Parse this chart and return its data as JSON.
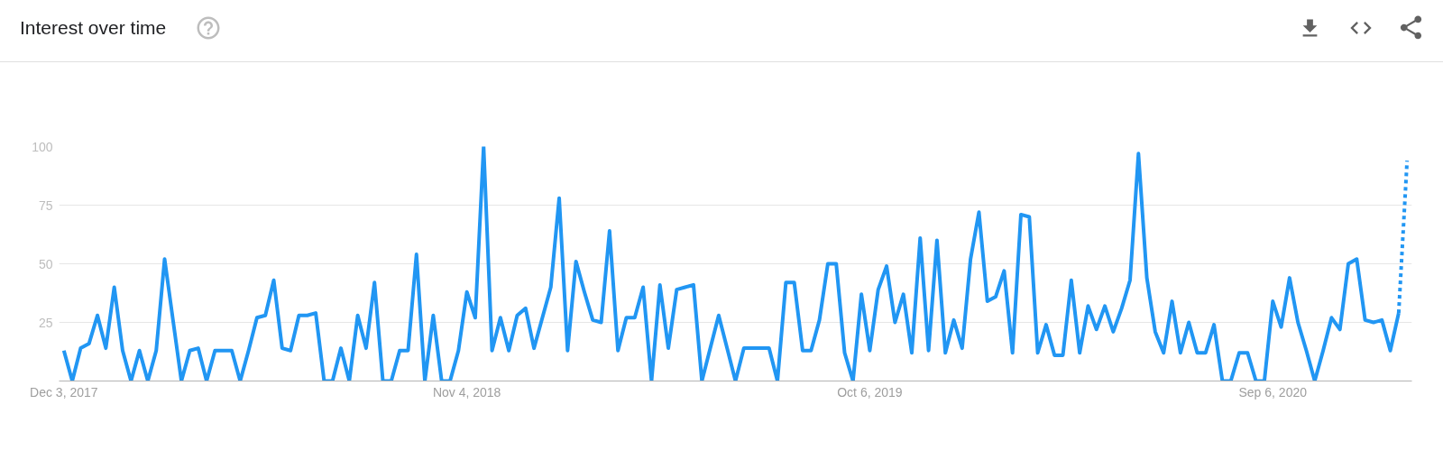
{
  "chart_data": {
    "type": "line",
    "title": "Interest over time",
    "x": [
      "2017-12-03",
      "2017-12-10",
      "2017-12-17",
      "2017-12-24",
      "2017-12-31",
      "2018-01-07",
      "2018-01-14",
      "2018-01-21",
      "2018-01-28",
      "2018-02-04",
      "2018-02-11",
      "2018-02-18",
      "2018-02-25",
      "2018-03-04",
      "2018-03-11",
      "2018-03-18",
      "2018-03-25",
      "2018-04-01",
      "2018-04-08",
      "2018-04-15",
      "2018-04-22",
      "2018-04-29",
      "2018-05-06",
      "2018-05-13",
      "2018-05-20",
      "2018-05-27",
      "2018-06-03",
      "2018-06-10",
      "2018-06-17",
      "2018-06-24",
      "2018-07-01",
      "2018-07-08",
      "2018-07-15",
      "2018-07-22",
      "2018-07-29",
      "2018-08-05",
      "2018-08-12",
      "2018-08-19",
      "2018-08-26",
      "2018-09-02",
      "2018-09-09",
      "2018-09-16",
      "2018-09-23",
      "2018-09-30",
      "2018-10-07",
      "2018-10-14",
      "2018-10-21",
      "2018-10-28",
      "2018-11-04",
      "2018-11-11",
      "2018-11-18",
      "2018-11-25",
      "2018-12-02",
      "2018-12-09",
      "2018-12-16",
      "2018-12-23",
      "2018-12-30",
      "2019-01-06",
      "2019-01-13",
      "2019-01-20",
      "2019-01-27",
      "2019-02-03",
      "2019-02-10",
      "2019-02-17",
      "2019-02-24",
      "2019-03-03",
      "2019-03-10",
      "2019-03-17",
      "2019-03-24",
      "2019-03-31",
      "2019-04-07",
      "2019-04-14",
      "2019-04-21",
      "2019-04-28",
      "2019-05-05",
      "2019-05-12",
      "2019-05-19",
      "2019-05-26",
      "2019-06-02",
      "2019-06-09",
      "2019-06-16",
      "2019-06-23",
      "2019-06-30",
      "2019-07-07",
      "2019-07-14",
      "2019-07-21",
      "2019-07-28",
      "2019-08-04",
      "2019-08-11",
      "2019-08-18",
      "2019-08-25",
      "2019-09-01",
      "2019-09-08",
      "2019-09-15",
      "2019-09-22",
      "2019-09-29",
      "2019-10-06",
      "2019-10-13",
      "2019-10-20",
      "2019-10-27",
      "2019-11-03",
      "2019-11-10",
      "2019-11-17",
      "2019-11-24",
      "2019-12-01",
      "2019-12-08",
      "2019-12-15",
      "2019-12-22",
      "2019-12-29",
      "2020-01-05",
      "2020-01-12",
      "2020-01-19",
      "2020-01-26",
      "2020-02-02",
      "2020-02-09",
      "2020-02-16",
      "2020-02-23",
      "2020-03-01",
      "2020-03-08",
      "2020-03-15",
      "2020-03-22",
      "2020-03-29",
      "2020-04-05",
      "2020-04-12",
      "2020-04-19",
      "2020-04-26",
      "2020-05-03",
      "2020-05-10",
      "2020-05-17",
      "2020-05-24",
      "2020-05-31",
      "2020-06-07",
      "2020-06-14",
      "2020-06-21",
      "2020-06-28",
      "2020-07-05",
      "2020-07-12",
      "2020-07-19",
      "2020-07-26",
      "2020-08-02",
      "2020-08-09",
      "2020-08-16",
      "2020-08-23",
      "2020-08-30",
      "2020-09-06",
      "2020-09-13",
      "2020-09-20",
      "2020-09-27",
      "2020-10-04",
      "2020-10-11",
      "2020-10-18",
      "2020-10-25",
      "2020-11-01",
      "2020-11-08",
      "2020-11-15",
      "2020-11-22",
      "2020-11-29",
      "2020-12-06",
      "2020-12-13",
      "2020-12-20"
    ],
    "series": [
      {
        "color": "#2196f3",
        "values": [
          13,
          0,
          14,
          16,
          28,
          14,
          40,
          13,
          0,
          13,
          0,
          13,
          52,
          26,
          0,
          13,
          14,
          0,
          13,
          13,
          13,
          0,
          13,
          27,
          28,
          43,
          14,
          13,
          28,
          28,
          29,
          0,
          0,
          14,
          0,
          28,
          14,
          42,
          0,
          0,
          13,
          13,
          54,
          0,
          28,
          0,
          0,
          13,
          38,
          27,
          100,
          13,
          27,
          13,
          28,
          31,
          14,
          27,
          40,
          78,
          13,
          51,
          38,
          26,
          25,
          64,
          13,
          27,
          27,
          40,
          0,
          41,
          14,
          39,
          40,
          41,
          0,
          14,
          28,
          14,
          0,
          14,
          14,
          14,
          14,
          0,
          42,
          42,
          13,
          13,
          26,
          50,
          50,
          12,
          0,
          37,
          13,
          39,
          49,
          25,
          37,
          12,
          61,
          13,
          60,
          12,
          26,
          14,
          52,
          72,
          34,
          36,
          47,
          12,
          71,
          70,
          12,
          24,
          11,
          11,
          43,
          12,
          32,
          22,
          32,
          21,
          31,
          43,
          97,
          44,
          21,
          12,
          34,
          12,
          25,
          12,
          12,
          24,
          0,
          0,
          12,
          12,
          0,
          0,
          34,
          23,
          44,
          25,
          13,
          0,
          13,
          27,
          22,
          50,
          52,
          26,
          25,
          26,
          13,
          29
        ]
      },
      {
        "color": "#2196f3",
        "x": [
          "2020-12-20",
          "2020-12-27"
        ],
        "values": [
          29,
          94
        ],
        "line_style": "dotted"
      }
    ],
    "line_style": "solid",
    "xlim": [
      "2017-11-29",
      "2020-12-31"
    ],
    "xticks": [
      {
        "value": "2017-12-03",
        "label": "Dec 3, 2017"
      },
      {
        "value": "2018-11-04",
        "label": "Nov 4, 2018"
      },
      {
        "value": "2019-10-06",
        "label": "Oct 6, 2019"
      },
      {
        "value": "2020-09-06",
        "label": "Sep 6, 2020"
      }
    ],
    "ylim": [
      0,
      100
    ],
    "yticks": [
      25,
      50,
      75,
      100
    ],
    "grid": "y"
  }
}
